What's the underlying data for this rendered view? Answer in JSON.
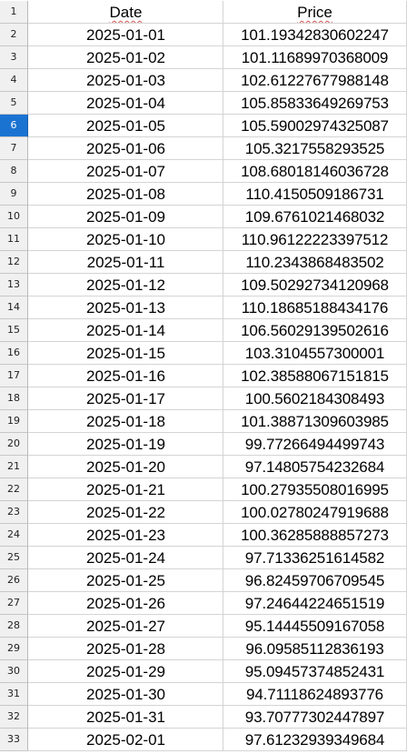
{
  "sheet": {
    "selected_row": "6",
    "rows": [
      {
        "num": "1",
        "a": "Date",
        "b": "Price",
        "header": true
      },
      {
        "num": "2",
        "a": "2025-01-01",
        "b": "101.19342830602247"
      },
      {
        "num": "3",
        "a": "2025-01-02",
        "b": "101.11689970368009"
      },
      {
        "num": "4",
        "a": "2025-01-03",
        "b": "102.61227677988148"
      },
      {
        "num": "5",
        "a": "2025-01-04",
        "b": "105.85833649269753"
      },
      {
        "num": "6",
        "a": "2025-01-05",
        "b": "105.59002974325087"
      },
      {
        "num": "7",
        "a": "2025-01-06",
        "b": "105.3217558293525"
      },
      {
        "num": "8",
        "a": "2025-01-07",
        "b": "108.68018146036728"
      },
      {
        "num": "9",
        "a": "2025-01-08",
        "b": "110.4150509186731"
      },
      {
        "num": "10",
        "a": "2025-01-09",
        "b": "109.6761021468032"
      },
      {
        "num": "11",
        "a": "2025-01-10",
        "b": "110.96122223397512"
      },
      {
        "num": "12",
        "a": "2025-01-11",
        "b": "110.2343868483502"
      },
      {
        "num": "13",
        "a": "2025-01-12",
        "b": "109.50292734120968"
      },
      {
        "num": "14",
        "a": "2025-01-13",
        "b": "110.18685188434176"
      },
      {
        "num": "15",
        "a": "2025-01-14",
        "b": "106.56029139502616"
      },
      {
        "num": "16",
        "a": "2025-01-15",
        "b": "103.3104557300001"
      },
      {
        "num": "17",
        "a": "2025-01-16",
        "b": "102.38588067151815"
      },
      {
        "num": "18",
        "a": "2025-01-17",
        "b": "100.5602184308493"
      },
      {
        "num": "19",
        "a": "2025-01-18",
        "b": "101.38871309603985"
      },
      {
        "num": "20",
        "a": "2025-01-19",
        "b": "99.77266494499743"
      },
      {
        "num": "21",
        "a": "2025-01-20",
        "b": "97.14805754232684"
      },
      {
        "num": "22",
        "a": "2025-01-21",
        "b": "100.27935508016995"
      },
      {
        "num": "23",
        "a": "2025-01-22",
        "b": "100.02780247919688"
      },
      {
        "num": "24",
        "a": "2025-01-23",
        "b": "100.36285888857273"
      },
      {
        "num": "25",
        "a": "2025-01-24",
        "b": "97.71336251614582"
      },
      {
        "num": "26",
        "a": "2025-01-25",
        "b": "96.82459706709545"
      },
      {
        "num": "27",
        "a": "2025-01-26",
        "b": "97.24644224651519"
      },
      {
        "num": "28",
        "a": "2025-01-27",
        "b": "95.14445509167058"
      },
      {
        "num": "29",
        "a": "2025-01-28",
        "b": "96.09585112836193"
      },
      {
        "num": "30",
        "a": "2025-01-29",
        "b": "95.09457374852431"
      },
      {
        "num": "31",
        "a": "2025-01-30",
        "b": "94.71118624893776"
      },
      {
        "num": "32",
        "a": "2025-01-31",
        "b": "93.70777302447897"
      },
      {
        "num": "33",
        "a": "2025-02-01",
        "b": "97.61232939349684"
      }
    ]
  },
  "colors": {
    "selected_row_header": "#1a73d1",
    "row_header_bg": "#f0f0f0",
    "gridline": "#d4d4d4"
  }
}
